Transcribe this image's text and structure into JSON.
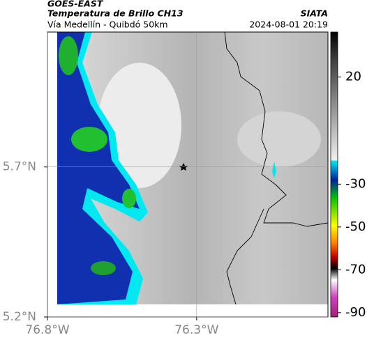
{
  "header": {
    "product": "GOES-EAST",
    "title": "Temperatura de Brillo CH13",
    "subtitle": "Vía Medellín - Quibdó 50km",
    "source": "SIATA",
    "datetime": "2024-08-01 20:19"
  },
  "map": {
    "xlim": [
      -76.8,
      -75.86
    ],
    "ylim": [
      5.2,
      6.15
    ],
    "xticks": [
      {
        "value": -76.8,
        "label": "76.8°W"
      },
      {
        "value": -76.3,
        "label": "76.3°W"
      }
    ],
    "yticks": [
      {
        "value": 5.7,
        "label": "5.7°N"
      },
      {
        "value": 5.2,
        "label": "5.2°N"
      }
    ],
    "grid": true
  },
  "colorbar": {
    "lim": [
      -92,
      41
    ],
    "ticks": [
      20,
      -30,
      -50,
      -70,
      -90
    ]
  }
}
